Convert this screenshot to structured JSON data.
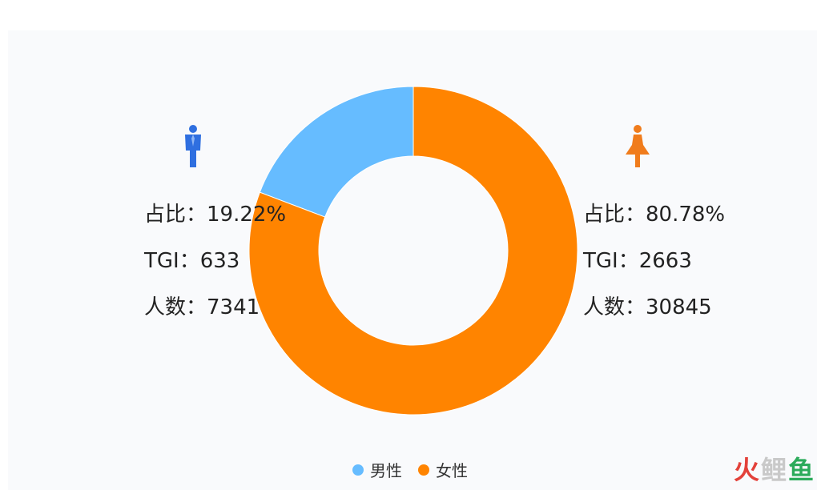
{
  "chart_data": {
    "type": "pie",
    "variant": "donut",
    "categories": [
      "男性",
      "女性"
    ],
    "values": [
      19.22,
      80.78
    ],
    "colors": [
      "#66bcff",
      "#ff8400"
    ],
    "legend_position": "bottom-center",
    "labels": {
      "male": {
        "ratio": "占比：19.22%",
        "tgi": "TGI：633",
        "count": "人数：7341"
      },
      "female": {
        "ratio": "占比：80.78%",
        "tgi": "TGI：2663",
        "count": "人数：30845"
      }
    }
  },
  "icons": {
    "male": "male-figure-icon",
    "female": "female-figure-icon"
  },
  "legend": [
    {
      "label": "男性",
      "color": "#66bcff"
    },
    {
      "label": "女性",
      "color": "#ff8400"
    }
  ],
  "watermark": {
    "part1": "火",
    "part2": "鲤",
    "part3": "鱼"
  }
}
